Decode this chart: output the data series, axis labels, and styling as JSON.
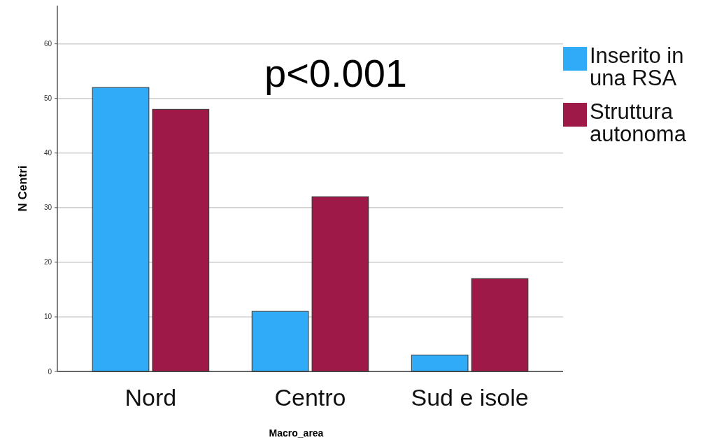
{
  "chart_data": {
    "type": "bar",
    "xlabel": "Macro_area",
    "ylabel": "N Centri",
    "categories": [
      "Nord",
      "Centro",
      "Sud e isole"
    ],
    "series": [
      {
        "name": "Inserito in una RSA",
        "color": "#2fabf8",
        "values": [
          52,
          11,
          3
        ]
      },
      {
        "name": "Struttura autonoma",
        "color": "#9e1848",
        "values": [
          48,
          32,
          17
        ]
      }
    ],
    "ylim": [
      0,
      67
    ],
    "yticks": [
      0,
      10,
      20,
      30,
      40,
      50,
      60
    ],
    "grid": "y",
    "legend": "right",
    "annotations": [
      "p<0.001"
    ]
  }
}
